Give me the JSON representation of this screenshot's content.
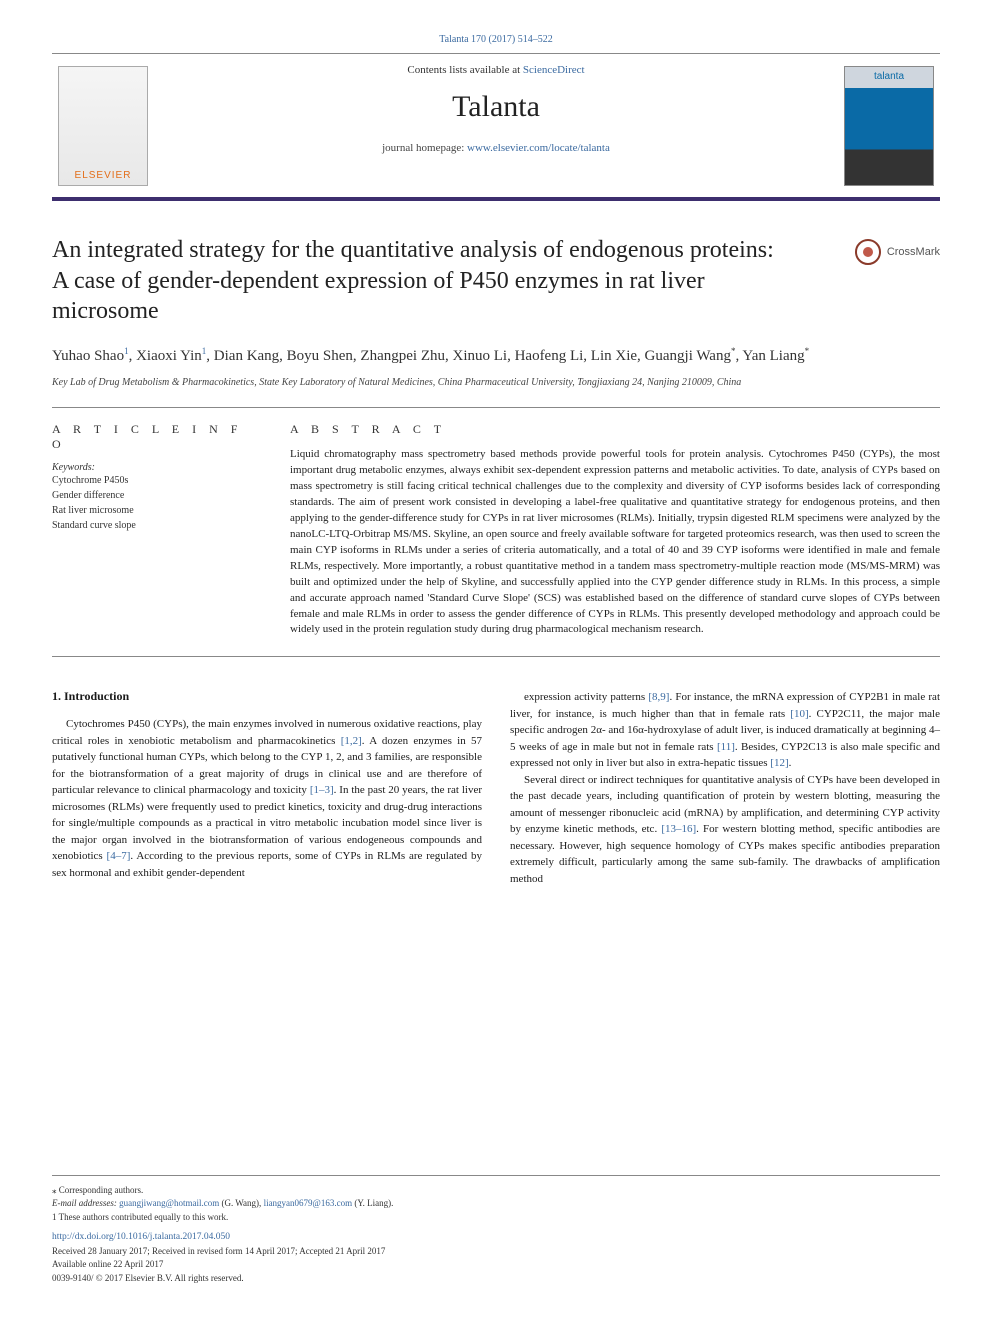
{
  "topLink": "Talanta 170 (2017) 514–522",
  "masthead": {
    "contentsPrefix": "Contents lists available at ",
    "contentsLink": "ScienceDirect",
    "journal": "Talanta",
    "homepagePrefix": "journal homepage: ",
    "homepageUrl": "www.elsevier.com/locate/talanta",
    "elsevier": "ELSEVIER",
    "coverWord": "talanta"
  },
  "crossmark": "CrossMark",
  "title": "An integrated strategy for the quantitative analysis of endogenous proteins: A case of gender-dependent expression of P450 enzymes in rat liver microsome",
  "authorsLine1": "Yuhao Shao",
  "authorsSup1": "1",
  "authorsSeg2": ", Xiaoxi Yin",
  "authorsSup2": "1",
  "authorsSeg3": ", Dian Kang, Boyu Shen, Zhangpei Zhu, Xinuo Li, Haofeng Li, Lin Xie, Guangji Wang",
  "authorsSupStar1": "*",
  "authorsSeg4": ", Yan Liang",
  "authorsSupStar2": "*",
  "affiliation": "Key Lab of Drug Metabolism & Pharmacokinetics, State Key Laboratory of Natural Medicines, China Pharmaceutical University, Tongjiaxiang 24, Nanjing 210009, China",
  "info": {
    "heading": "A R T I C L E  I N F O",
    "kwLabel": "Keywords:",
    "kw": [
      "Cytochrome P450s",
      "Gender difference",
      "Rat liver microsome",
      "Standard curve slope"
    ]
  },
  "abstract": {
    "heading": "A B S T R A C T",
    "text": "Liquid chromatography mass spectrometry based methods provide powerful tools for protein analysis. Cytochromes P450 (CYPs), the most important drug metabolic enzymes, always exhibit sex-dependent expression patterns and metabolic activities. To date, analysis of CYPs based on mass spectrometry is still facing critical technical challenges due to the complexity and diversity of CYP isoforms besides lack of corresponding standards. The aim of present work consisted in developing a label-free qualitative and quantitative strategy for endogenous proteins, and then applying to the gender-difference study for CYPs in rat liver microsomes (RLMs). Initially, trypsin digested RLM specimens were analyzed by the nanoLC-LTQ-Orbitrap MS/MS. Skyline, an open source and freely available software for targeted proteomics research, was then used to screen the main CYP isoforms in RLMs under a series of criteria automatically, and a total of 40 and 39 CYP isoforms were identified in male and female RLMs, respectively. More importantly, a robust quantitative method in a tandem mass spectrometry-multiple reaction mode (MS/MS-MRM) was built and optimized under the help of Skyline, and successfully applied into the CYP gender difference study in RLMs. In this process, a simple and accurate approach named 'Standard Curve Slope' (SCS) was established based on the difference of standard curve slopes of CYPs between female and male RLMs in order to assess the gender difference of CYPs in RLMs. This presently developed methodology and approach could be widely used in the protein regulation study during drug pharmacological mechanism research."
  },
  "intro": {
    "heading": "1. Introduction",
    "leftPara": "Cytochromes P450 (CYPs), the main enzymes involved in numerous oxidative reactions, play critical roles in xenobiotic metabolism and pharmacokinetics [1,2]. A dozen enzymes in 57 putatively functional human CYPs, which belong to the CYP 1, 2, and 3 families, are responsible for the biotransformation of a great majority of drugs in clinical use and are therefore of particular relevance to clinical pharmacology and toxicity [1–3]. In the past 20 years, the rat liver microsomes (RLMs) were frequently used to predict kinetics, toxicity and drug-drug interactions for single/multiple compounds as a practical in vitro metabolic incubation model since liver is the major organ involved in the biotransformation of various endogeneous compounds and xenobiotics [4–7]. According to the previous reports, some of CYPs in RLMs are regulated by sex hormonal and exhibit gender-dependent",
    "rightPara1": "expression activity patterns [8,9]. For instance, the mRNA expression of CYP2B1 in male rat liver, for instance, is much higher than that in female rats [10]. CYP2C11, the major male specific androgen 2α- and 16α-hydroxylase of adult liver, is induced dramatically at beginning 4–5 weeks of age in male but not in female rats [11]. Besides, CYP2C13 is also male specific and expressed not only in liver but also in extra-hepatic tissues [12].",
    "rightPara2": "Several direct or indirect techniques for quantitative analysis of CYPs have been developed in the past decade years, including quantification of protein by western blotting, measuring the amount of messenger ribonucleic acid (mRNA) by amplification, and determining CYP activity by enzyme kinetic methods, etc. [13–16]. For western blotting method, specific antibodies are necessary. However, high sequence homology of CYPs makes specific antibodies preparation extremely difficult, particularly among the same sub-family. The drawbacks of amplification method"
  },
  "footer": {
    "corresponding": "⁎ Corresponding authors.",
    "emailsPrefix": "E-mail addresses: ",
    "email1": "guangjiwang@hotmail.com",
    "email1Aff": " (G. Wang), ",
    "email2": "liangyan0679@163.com",
    "email2Aff": " (Y. Liang).",
    "equal": "1 These authors contributed equally to this work.",
    "doi": "http://dx.doi.org/10.1016/j.talanta.2017.04.050",
    "history": "Received 28 January 2017; Received in revised form 14 April 2017; Accepted 21 April 2017",
    "available": "Available online 22 April 2017",
    "copyright": "0039-9140/ © 2017 Elsevier B.V. All rights reserved."
  },
  "cites": {
    "c12": "[1,2]",
    "c13": "[1–3]",
    "c47": "[4–7]",
    "c89": "[8,9]",
    "c10": "[10]",
    "c11": "[11]",
    "c12b": "[12]",
    "c1316": "[13–16]"
  }
}
